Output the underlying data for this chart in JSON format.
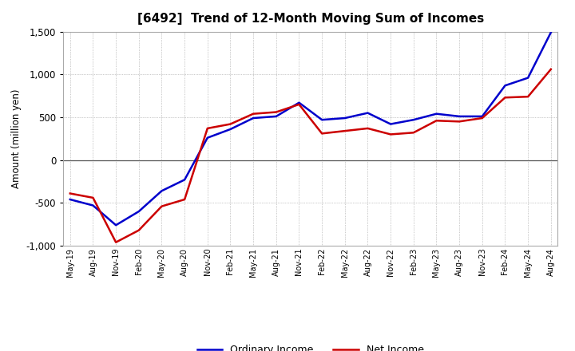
{
  "title": "[6492]  Trend of 12-Month Moving Sum of Incomes",
  "ylabel": "Amount (million yen)",
  "ylim": [
    -1000,
    1500
  ],
  "yticks": [
    -1000,
    -500,
    0,
    500,
    1000,
    1500
  ],
  "background_color": "#ffffff",
  "plot_background": "#ffffff",
  "grid_color": "#999999",
  "x_labels": [
    "May-19",
    "Aug-19",
    "Nov-19",
    "Feb-20",
    "May-20",
    "Aug-20",
    "Nov-20",
    "Feb-21",
    "May-21",
    "Aug-21",
    "Nov-21",
    "Feb-22",
    "May-22",
    "Aug-22",
    "Nov-22",
    "Feb-23",
    "May-23",
    "Aug-23",
    "Nov-23",
    "Feb-24",
    "May-24",
    "Aug-24"
  ],
  "ordinary_income": [
    -460,
    -530,
    -760,
    -600,
    -360,
    -230,
    260,
    360,
    490,
    510,
    670,
    470,
    490,
    550,
    420,
    470,
    540,
    510,
    510,
    870,
    960,
    1490
  ],
  "net_income": [
    -390,
    -440,
    -960,
    -820,
    -540,
    -460,
    370,
    420,
    540,
    560,
    650,
    310,
    340,
    370,
    300,
    320,
    460,
    450,
    490,
    730,
    740,
    1060
  ],
  "ordinary_color": "#0000cc",
  "net_color": "#cc0000",
  "line_width": 1.8,
  "legend_labels": [
    "Ordinary Income",
    "Net Income"
  ]
}
